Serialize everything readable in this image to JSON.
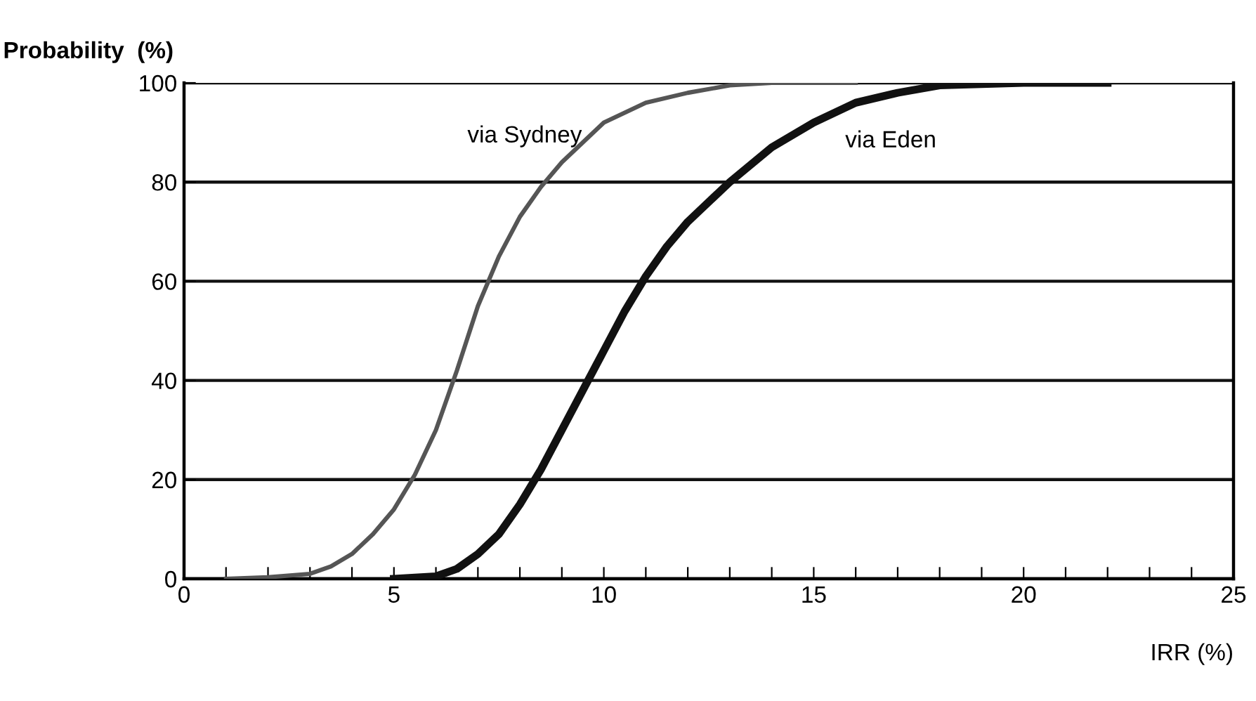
{
  "chart_data": {
    "type": "line",
    "xlabel": "IRR (%)",
    "ylabel": "Probability  (%)",
    "xlim": [
      0,
      25
    ],
    "ylim": [
      0,
      100
    ],
    "xticks": [
      0,
      {
        "value": 1,
        "label": null
      },
      {
        "value": 2,
        "label": null
      },
      {
        "value": 3,
        "label": null
      },
      {
        "value": 4,
        "label": null
      },
      5,
      {
        "value": 6,
        "label": null
      },
      {
        "value": 7,
        "label": null
      },
      {
        "value": 8,
        "label": null
      },
      {
        "value": 9,
        "label": null
      },
      10,
      {
        "value": 11,
        "label": null
      },
      {
        "value": 12,
        "label": null
      },
      {
        "value": 13,
        "label": null
      },
      {
        "value": 14,
        "label": null
      },
      15,
      {
        "value": 16,
        "label": null
      },
      {
        "value": 17,
        "label": null
      },
      {
        "value": 18,
        "label": null
      },
      {
        "value": 19,
        "label": null
      },
      20,
      {
        "value": 21,
        "label": null
      },
      {
        "value": 22,
        "label": null
      },
      {
        "value": 23,
        "label": null
      },
      {
        "value": 24,
        "label": null
      },
      25
    ],
    "yticks": [
      0,
      20,
      40,
      60,
      80,
      100
    ],
    "grid": "y",
    "legend": false,
    "line_style": "solid",
    "marker": "none",
    "series": [
      {
        "name": "via Sydney",
        "color": "#555555",
        "x": [
          1,
          2,
          3,
          3.5,
          4,
          4.5,
          5,
          5.5,
          6,
          6.5,
          7,
          7.5,
          8,
          8.5,
          9,
          9.5,
          10,
          11,
          12,
          13,
          14,
          16
        ],
        "values": [
          0,
          0.3,
          1,
          2.5,
          5,
          9,
          14,
          21,
          30,
          42,
          55,
          65,
          73,
          79,
          84,
          88,
          92,
          96,
          98,
          99.5,
          100,
          100
        ]
      },
      {
        "name": "via Eden",
        "color": "#111111",
        "x": [
          5,
          6,
          6.5,
          7,
          7.5,
          8,
          8.5,
          9,
          9.5,
          10,
          10.5,
          11,
          11.5,
          12,
          13,
          14,
          15,
          16,
          17,
          18,
          20,
          22
        ],
        "values": [
          0,
          0.5,
          2,
          5,
          9,
          15,
          22,
          30,
          38,
          46,
          54,
          61,
          67,
          72,
          80,
          87,
          92,
          96,
          98,
          99.5,
          100,
          100
        ]
      }
    ]
  }
}
